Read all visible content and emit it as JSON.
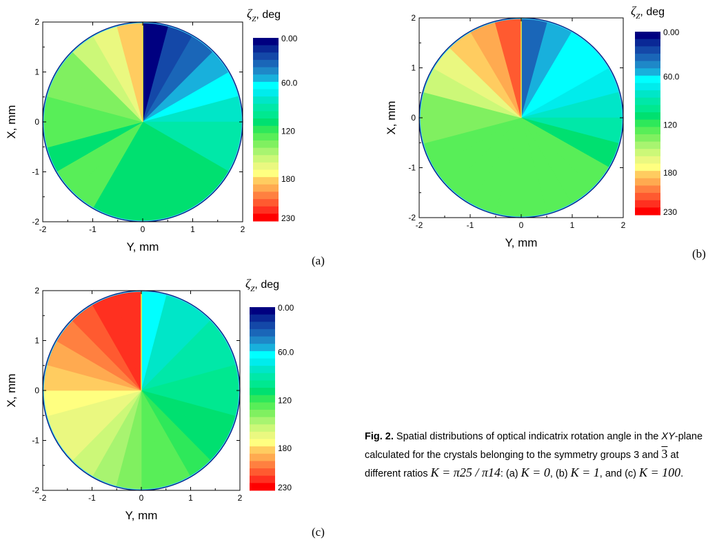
{
  "panels": [
    {
      "id": "a",
      "tag": "(a)",
      "xlabel": "Y, mm",
      "ylabel": "X, mm",
      "x_ticks": [
        "-2",
        "-1",
        "0",
        "1",
        "2"
      ],
      "y_ticks": [
        "2",
        "1",
        "0",
        "-1",
        "-2"
      ],
      "sector_values_deg": [
        0,
        15,
        30,
        45,
        60,
        75,
        90,
        90,
        105,
        105,
        105,
        105,
        105,
        105,
        120,
        120,
        105,
        120,
        120,
        135,
        135,
        150,
        165,
        180
      ],
      "colorbar": {
        "title_symbol": "ζ",
        "title_subscript": "Z",
        "title_unit": ", deg",
        "labels": [
          "0.00",
          "60.0",
          "120",
          "180",
          "230"
        ]
      }
    },
    {
      "id": "b",
      "tag": "(b)",
      "xlabel": "Y, mm",
      "ylabel": "X, mm",
      "x_ticks": [
        "-2",
        "-1",
        "0",
        "1",
        "2"
      ],
      "y_ticks": [
        "2",
        "1",
        "0",
        "-1",
        "-2"
      ],
      "sector_values_deg": [
        30,
        45,
        55,
        60,
        65,
        75,
        90,
        105,
        120,
        125,
        120,
        120,
        120,
        120,
        120,
        120,
        120,
        135,
        135,
        150,
        165,
        180,
        195,
        210
      ],
      "colorbar": {
        "title_symbol": "ζ",
        "title_subscript": "Z",
        "title_unit": ", deg",
        "labels": [
          "0.00",
          "60.0",
          "120",
          "180",
          "230"
        ]
      }
    },
    {
      "id": "c",
      "tag": "(c)",
      "xlabel": "Y, mm",
      "ylabel": "X, mm",
      "x_ticks": [
        "-2",
        "-1",
        "0",
        "1",
        "2"
      ],
      "y_ticks": [
        "2",
        "1",
        "0",
        "-1",
        "-2"
      ],
      "sector_values_deg": [
        60,
        75,
        80,
        85,
        90,
        95,
        100,
        105,
        110,
        115,
        120,
        125,
        135,
        140,
        150,
        160,
        165,
        175,
        185,
        195,
        205,
        215,
        220,
        225
      ],
      "colorbar": {
        "title_symbol": "ζ",
        "title_subscript": "Z",
        "title_unit": ", deg",
        "labels": [
          "0.00",
          "60.0",
          "120",
          "180",
          "230"
        ]
      }
    }
  ],
  "colormap": [
    "#000080",
    "#0a2896",
    "#1448a8",
    "#1a66b8",
    "#1e88c8",
    "#18b0dc",
    "#00ffff",
    "#00ecec",
    "#00e6c8",
    "#00e8a8",
    "#00e890",
    "#00e070",
    "#2ee85a",
    "#58ee58",
    "#80f060",
    "#a8f470",
    "#ccf878",
    "#eaf880",
    "#ffff80",
    "#ffcc60",
    "#ffaa50",
    "#ff8040",
    "#ff5a30",
    "#ff3020",
    "#ff0000"
  ],
  "caption": {
    "label": "Fig. 2.",
    "part1": " Spatial distributions of optical indicatrix rotation angle in the ",
    "plane": "XY",
    "part2": "-plane calculated for the crystals belonging to the symmetry groups 3 and ",
    "group2": "3",
    "part3": " at different ratios ",
    "k_def": "K = π25 / π14",
    "part4": ": (a) ",
    "k_a": "K = 0",
    "part5": ", (b) ",
    "k_b": "K = 1",
    "part6": ", and (c) ",
    "k_c": "K = 100",
    "part7": "."
  }
}
